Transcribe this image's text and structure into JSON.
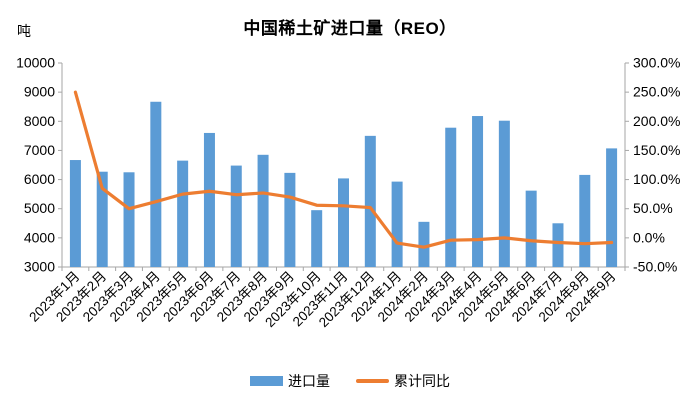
{
  "chart": {
    "title": "中国稀土矿进口量（REO）",
    "unit_label": "吨",
    "legend": {
      "items": [
        {
          "label": "进口量"
        },
        {
          "label": "累计同比"
        }
      ]
    }
  },
  "chart_data": {
    "type": "combo_bar_line",
    "title": "中国稀土矿进口量（REO）",
    "categories": [
      "2023年1月",
      "2023年2月",
      "2023年3月",
      "2023年4月",
      "2023年5月",
      "2023年6月",
      "2023年7月",
      "2023年8月",
      "2023年9月",
      "2023年10月",
      "2023年11月",
      "2023年12月",
      "2024年1月",
      "2024年2月",
      "2024年3月",
      "2024年4月",
      "2024年5月",
      "2024年6月",
      "2024年7月",
      "2024年8月",
      "2024年9月"
    ],
    "series": [
      {
        "name": "进口量",
        "type": "bar",
        "axis": "left",
        "unit": "吨",
        "color": "#5B9BD5",
        "values": [
          6670,
          6270,
          6250,
          8670,
          6650,
          7600,
          6480,
          6850,
          6230,
          4950,
          6040,
          7500,
          5930,
          4550,
          7780,
          8180,
          8020,
          5620,
          4500,
          6160,
          7070
        ]
      },
      {
        "name": "累计同比",
        "type": "line",
        "axis": "right",
        "unit": "%",
        "color": "#ED7D31",
        "values": [
          250,
          85,
          50,
          62,
          75,
          80,
          74,
          77,
          70,
          56,
          55,
          52,
          -9,
          -16,
          -4,
          -3,
          0,
          -5,
          -8,
          -10,
          -8
        ]
      }
    ],
    "left_axis": {
      "label": "吨",
      "min": 3000,
      "max": 10000,
      "tick_step": 1000,
      "ticks": [
        "10000",
        "9000",
        "8000",
        "7000",
        "6000",
        "5000",
        "4000",
        "3000"
      ]
    },
    "right_axis": {
      "min": -50,
      "max": 300,
      "tick_step": 50,
      "ticks": [
        "300.0%",
        "250.0%",
        "200.0%",
        "150.0%",
        "100.0%",
        "50.0%",
        "0.0%",
        "-50.0%"
      ]
    },
    "axis_color": "#A6A6A6",
    "grid": false,
    "legend_position": "bottom"
  }
}
